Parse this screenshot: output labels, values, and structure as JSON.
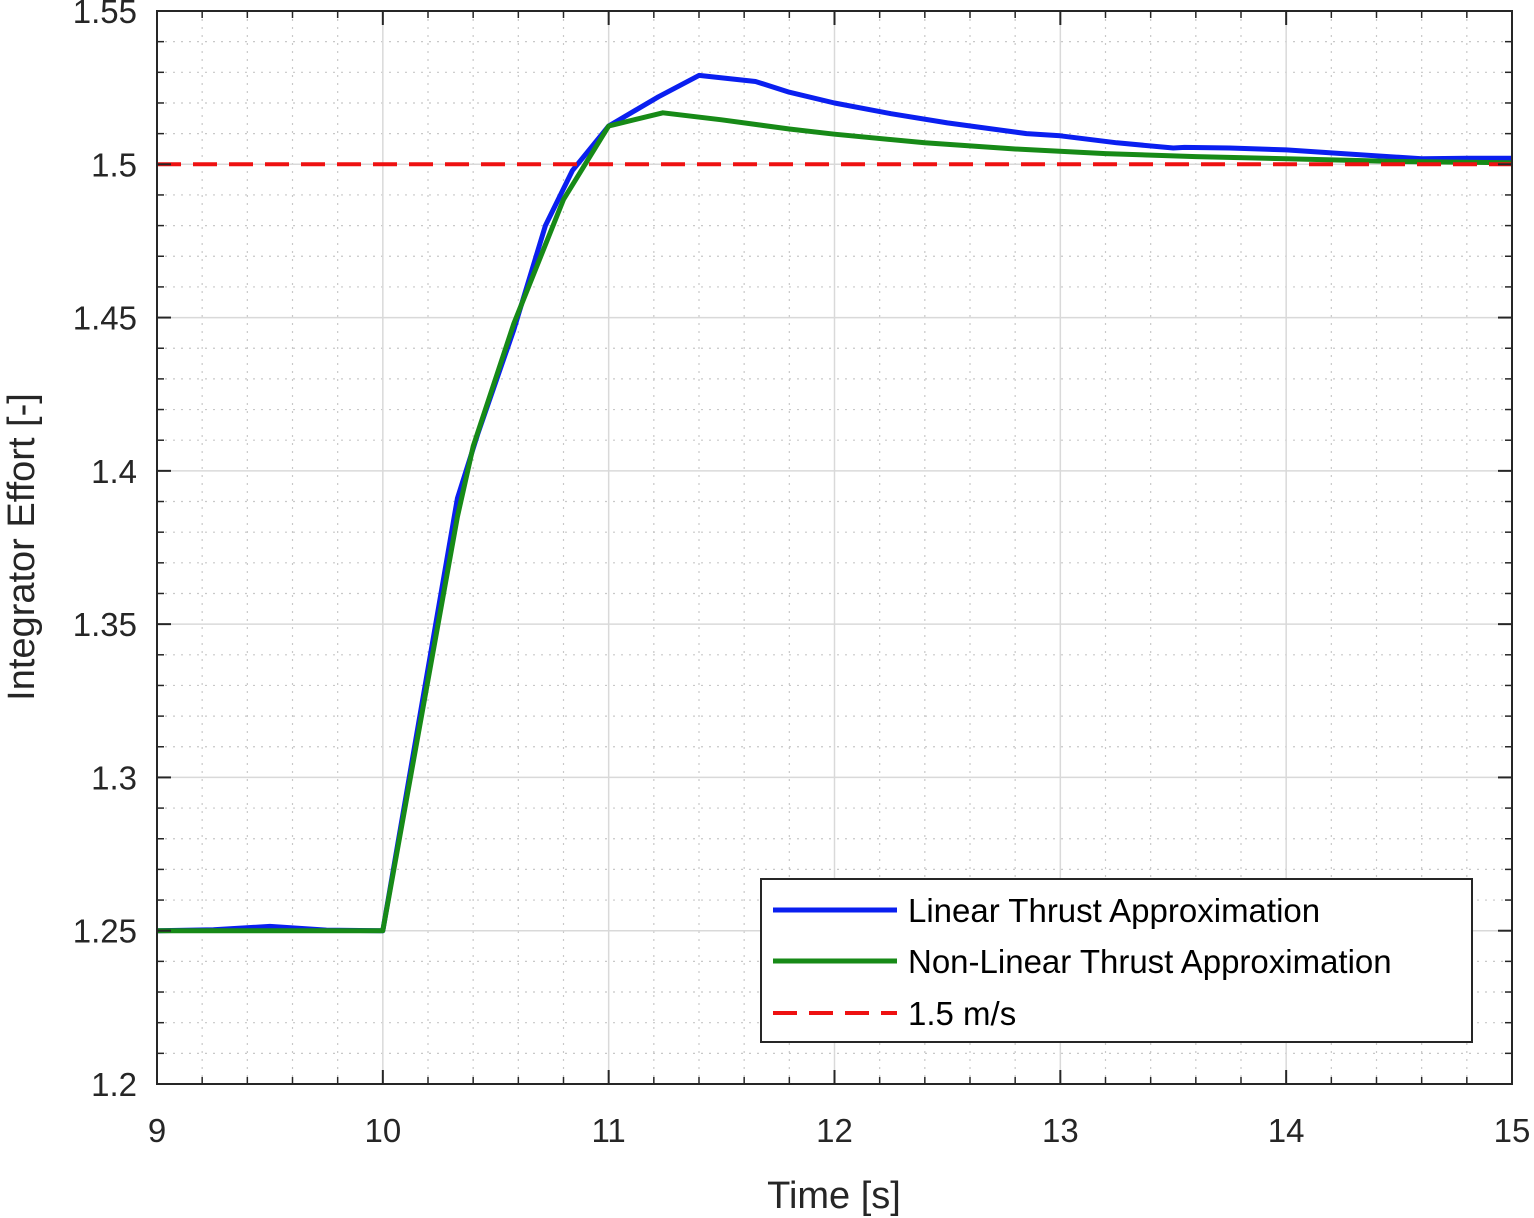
{
  "chart_data": {
    "type": "line",
    "xlabel": "Time [s]",
    "ylabel": "Integrator Effort [-]",
    "xlim": [
      9,
      15
    ],
    "ylim": [
      1.2,
      1.55
    ],
    "xticks": [
      "9",
      "10",
      "11",
      "12",
      "13",
      "14",
      "15"
    ],
    "xtick_values": [
      9,
      10,
      11,
      12,
      13,
      14,
      15
    ],
    "yticks": [
      "1.2",
      "1.25",
      "1.3",
      "1.35",
      "1.4",
      "1.45",
      "1.5",
      "1.55"
    ],
    "ytick_values": [
      1.2,
      1.25,
      1.3,
      1.35,
      1.4,
      1.45,
      1.5,
      1.55
    ],
    "grid": true,
    "minor_grid": true,
    "legend_position": "bottom-right",
    "series": [
      {
        "name": "Linear Thrust Approximation",
        "color": "#0a1ff0",
        "style": "solid",
        "x": [
          9.0,
          9.25,
          9.5,
          9.75,
          10.0,
          10.33,
          10.42,
          10.58,
          10.72,
          10.84,
          11.0,
          11.22,
          11.4,
          11.65,
          11.8,
          12.0,
          12.25,
          12.5,
          12.85,
          13.0,
          13.25,
          13.5,
          13.55,
          13.75,
          14.0,
          14.25,
          14.6,
          14.8,
          15.0
        ],
        "y": [
          1.25,
          1.2503,
          1.2514,
          1.2502,
          1.25,
          1.391,
          1.412,
          1.446,
          1.48,
          1.498,
          1.5125,
          1.522,
          1.529,
          1.527,
          1.5235,
          1.52,
          1.5165,
          1.5135,
          1.51,
          1.5093,
          1.507,
          1.5053,
          1.5055,
          1.5053,
          1.5047,
          1.5035,
          1.5018,
          1.502,
          1.502
        ]
      },
      {
        "name": "Non-Linear Thrust Approximation",
        "color": "#178a17",
        "style": "solid",
        "x": [
          9.0,
          9.5,
          10.0,
          10.33,
          10.4,
          10.58,
          10.8,
          11.0,
          11.24,
          11.5,
          11.8,
          12.0,
          12.4,
          12.8,
          13.2,
          13.6,
          14.0,
          14.5,
          15.0
        ],
        "y": [
          1.25,
          1.25,
          1.25,
          1.385,
          1.408,
          1.448,
          1.4885,
          1.5125,
          1.5168,
          1.5145,
          1.5115,
          1.5098,
          1.507,
          1.505,
          1.5035,
          1.5025,
          1.5018,
          1.5009,
          1.5005
        ]
      },
      {
        "name": "1.5 m/s",
        "color": "#ee1111",
        "style": "dashed",
        "x": [
          9,
          15
        ],
        "y": [
          1.5,
          1.5
        ]
      }
    ]
  }
}
